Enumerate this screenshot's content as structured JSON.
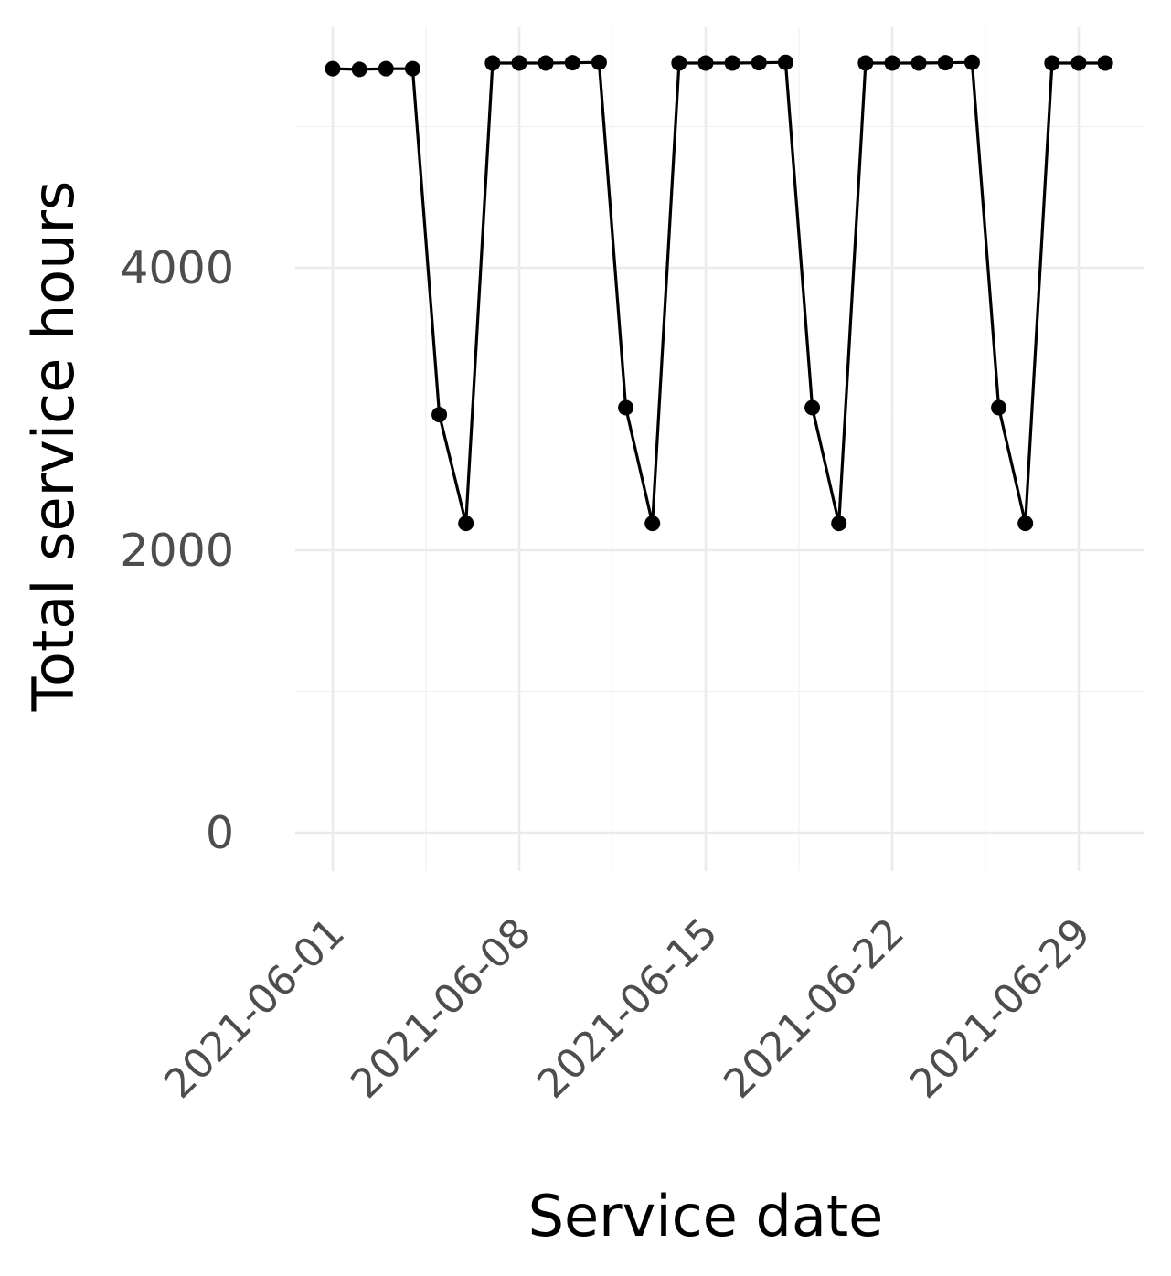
{
  "chart_data": {
    "type": "line",
    "title": "",
    "xlabel": "Service date",
    "ylabel": "Total service hours",
    "x_ticks": [
      "2021-06-01",
      "2021-06-08",
      "2021-06-15",
      "2021-06-22",
      "2021-06-29"
    ],
    "y_ticks": [
      "0",
      "2000",
      "4000"
    ],
    "ylim": [
      0,
      5540
    ],
    "xlim": [
      "2021-05-31",
      "2021-07-02"
    ],
    "grid": true,
    "legend": "none",
    "line_color": "#000000",
    "grid_color": "#ebebeb",
    "series": [
      {
        "x": [
          "2021-06-01",
          "2021-06-02",
          "2021-06-03",
          "2021-06-04",
          "2021-06-05",
          "2021-06-06",
          "2021-06-07",
          "2021-06-08",
          "2021-06-09",
          "2021-06-10",
          "2021-06-11",
          "2021-06-12",
          "2021-06-13",
          "2021-06-14",
          "2021-06-15",
          "2021-06-16",
          "2021-06-17",
          "2021-06-18",
          "2021-06-19",
          "2021-06-20",
          "2021-06-21",
          "2021-06-22",
          "2021-06-23",
          "2021-06-24",
          "2021-06-25",
          "2021-06-26",
          "2021-06-27",
          "2021-06-28",
          "2021-06-29",
          "2021-06-30"
        ],
        "values": [
          5410,
          5405,
          5410,
          5410,
          2960,
          2190,
          5450,
          5450,
          5450,
          5452,
          5455,
          3010,
          2190,
          5450,
          5450,
          5450,
          5452,
          5455,
          3010,
          2190,
          5450,
          5450,
          5450,
          5452,
          5455,
          3010,
          2190,
          5450,
          5450,
          5450
        ]
      }
    ]
  }
}
